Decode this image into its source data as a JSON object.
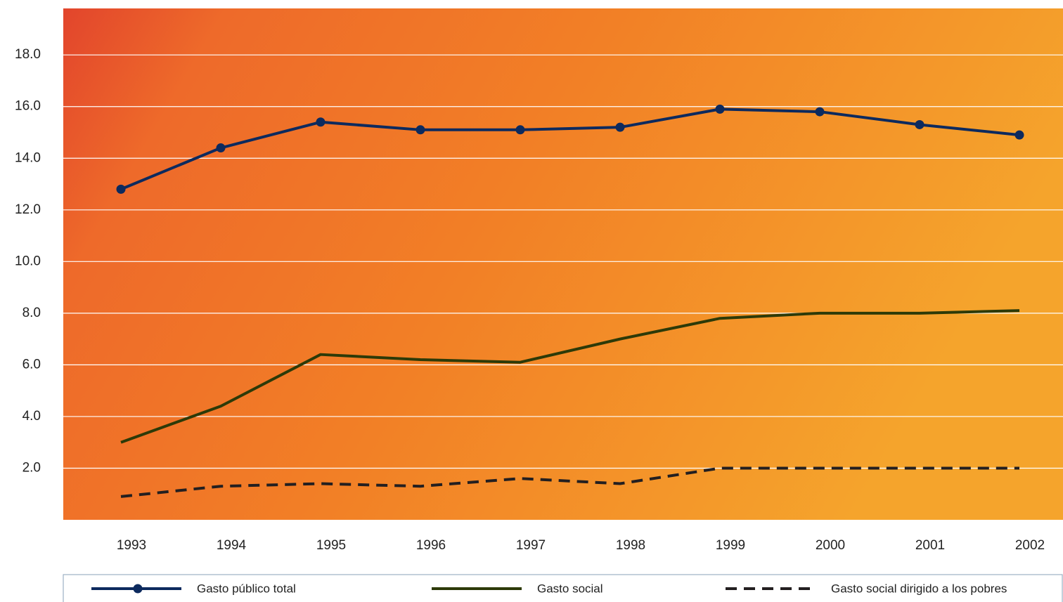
{
  "chart_data": {
    "type": "line",
    "categories": [
      "1993",
      "1994",
      "1995",
      "1996",
      "1997",
      "1998",
      "1999",
      "2000",
      "2001",
      "2002"
    ],
    "series": [
      {
        "name": "Gasto público total",
        "color": "#0d2a5e",
        "markers": true,
        "dashed": false,
        "values": [
          12.8,
          14.4,
          15.4,
          15.1,
          15.1,
          15.2,
          15.9,
          15.8,
          15.3,
          14.9
        ]
      },
      {
        "name": "Gasto social",
        "color": "#2d3a08",
        "markers": false,
        "dashed": false,
        "values": [
          3.0,
          4.4,
          6.4,
          6.2,
          6.1,
          7.0,
          7.8,
          8.0,
          8.0,
          8.1
        ]
      },
      {
        "name": "Gasto social dirigido a los pobres",
        "color": "#231f20",
        "markers": false,
        "dashed": true,
        "values": [
          0.9,
          1.3,
          1.4,
          1.3,
          1.6,
          1.4,
          2.0,
          2.0,
          2.0,
          2.0
        ]
      }
    ],
    "ylim": [
      0,
      19.8
    ],
    "yticks": [
      {
        "value": 2,
        "label": "2.0"
      },
      {
        "value": 4,
        "label": "4.0"
      },
      {
        "value": 6,
        "label": "6.0"
      },
      {
        "value": 8,
        "label": "8.0"
      },
      {
        "value": 10,
        "label": "10.0"
      },
      {
        "value": 12,
        "label": "12.0"
      },
      {
        "value": 14,
        "label": "14.0"
      },
      {
        "value": 16,
        "label": "16.0"
      },
      {
        "value": 18,
        "label": "18.0"
      }
    ],
    "grid": true
  }
}
